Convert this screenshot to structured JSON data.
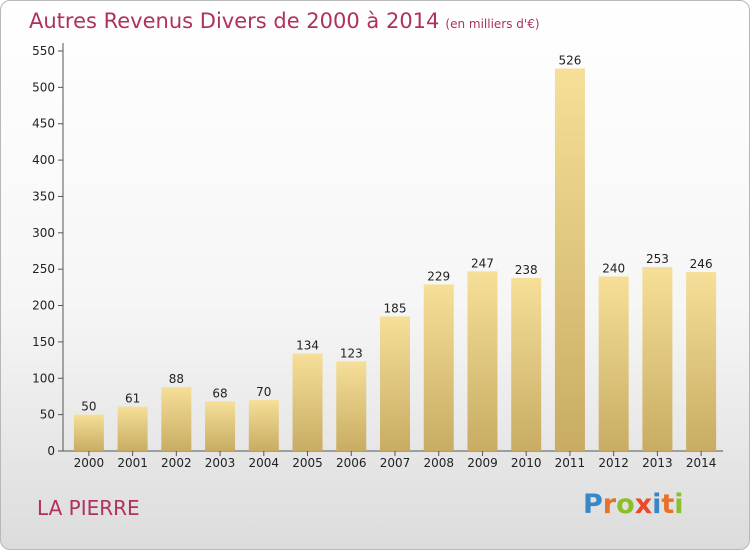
{
  "header": {
    "title": "Autres Revenus Divers de 2000 à 2014",
    "unit": "(en milliers d'€)"
  },
  "footer": {
    "place": "LA PIERRE",
    "logo_letters": [
      "P",
      "r",
      "o",
      "x",
      "i",
      "t",
      "i"
    ],
    "logo_colors": [
      "#3a87c8",
      "#e8712a",
      "#8bbf2a",
      "#e84a2a",
      "#3a87c8",
      "#e8712a",
      "#8bbf2a"
    ]
  },
  "colors": {
    "bar_light": "#f6df98",
    "bar_dark": "#c8ac63",
    "axis": "#555555",
    "grid": "#dcdcdc",
    "text": "#222222"
  },
  "chart_data": {
    "type": "bar",
    "title": "Autres Revenus Divers de 2000 à 2014",
    "subtitle": "(en milliers d'€)",
    "categories": [
      "2000",
      "2001",
      "2002",
      "2003",
      "2004",
      "2005",
      "2006",
      "2007",
      "2008",
      "2009",
      "2010",
      "2011",
      "2012",
      "2013",
      "2014"
    ],
    "values": [
      50,
      61,
      88,
      68,
      70,
      134,
      123,
      185,
      229,
      247,
      238,
      526,
      240,
      253,
      246
    ],
    "data_labels": [
      "50",
      "61",
      "88",
      "68",
      "70",
      "134",
      "123",
      "185",
      "229",
      "247",
      "238",
      "526",
      "240",
      "253",
      "246"
    ],
    "ylim": [
      0,
      550
    ],
    "yticks": [
      0,
      50,
      100,
      150,
      200,
      250,
      300,
      350,
      400,
      450,
      500,
      550
    ],
    "ytick_labels": [
      "0",
      "50",
      "100",
      "150",
      "200",
      "250",
      "300",
      "350",
      "400",
      "450",
      "500",
      "550"
    ],
    "grid": false,
    "legend": "none"
  }
}
